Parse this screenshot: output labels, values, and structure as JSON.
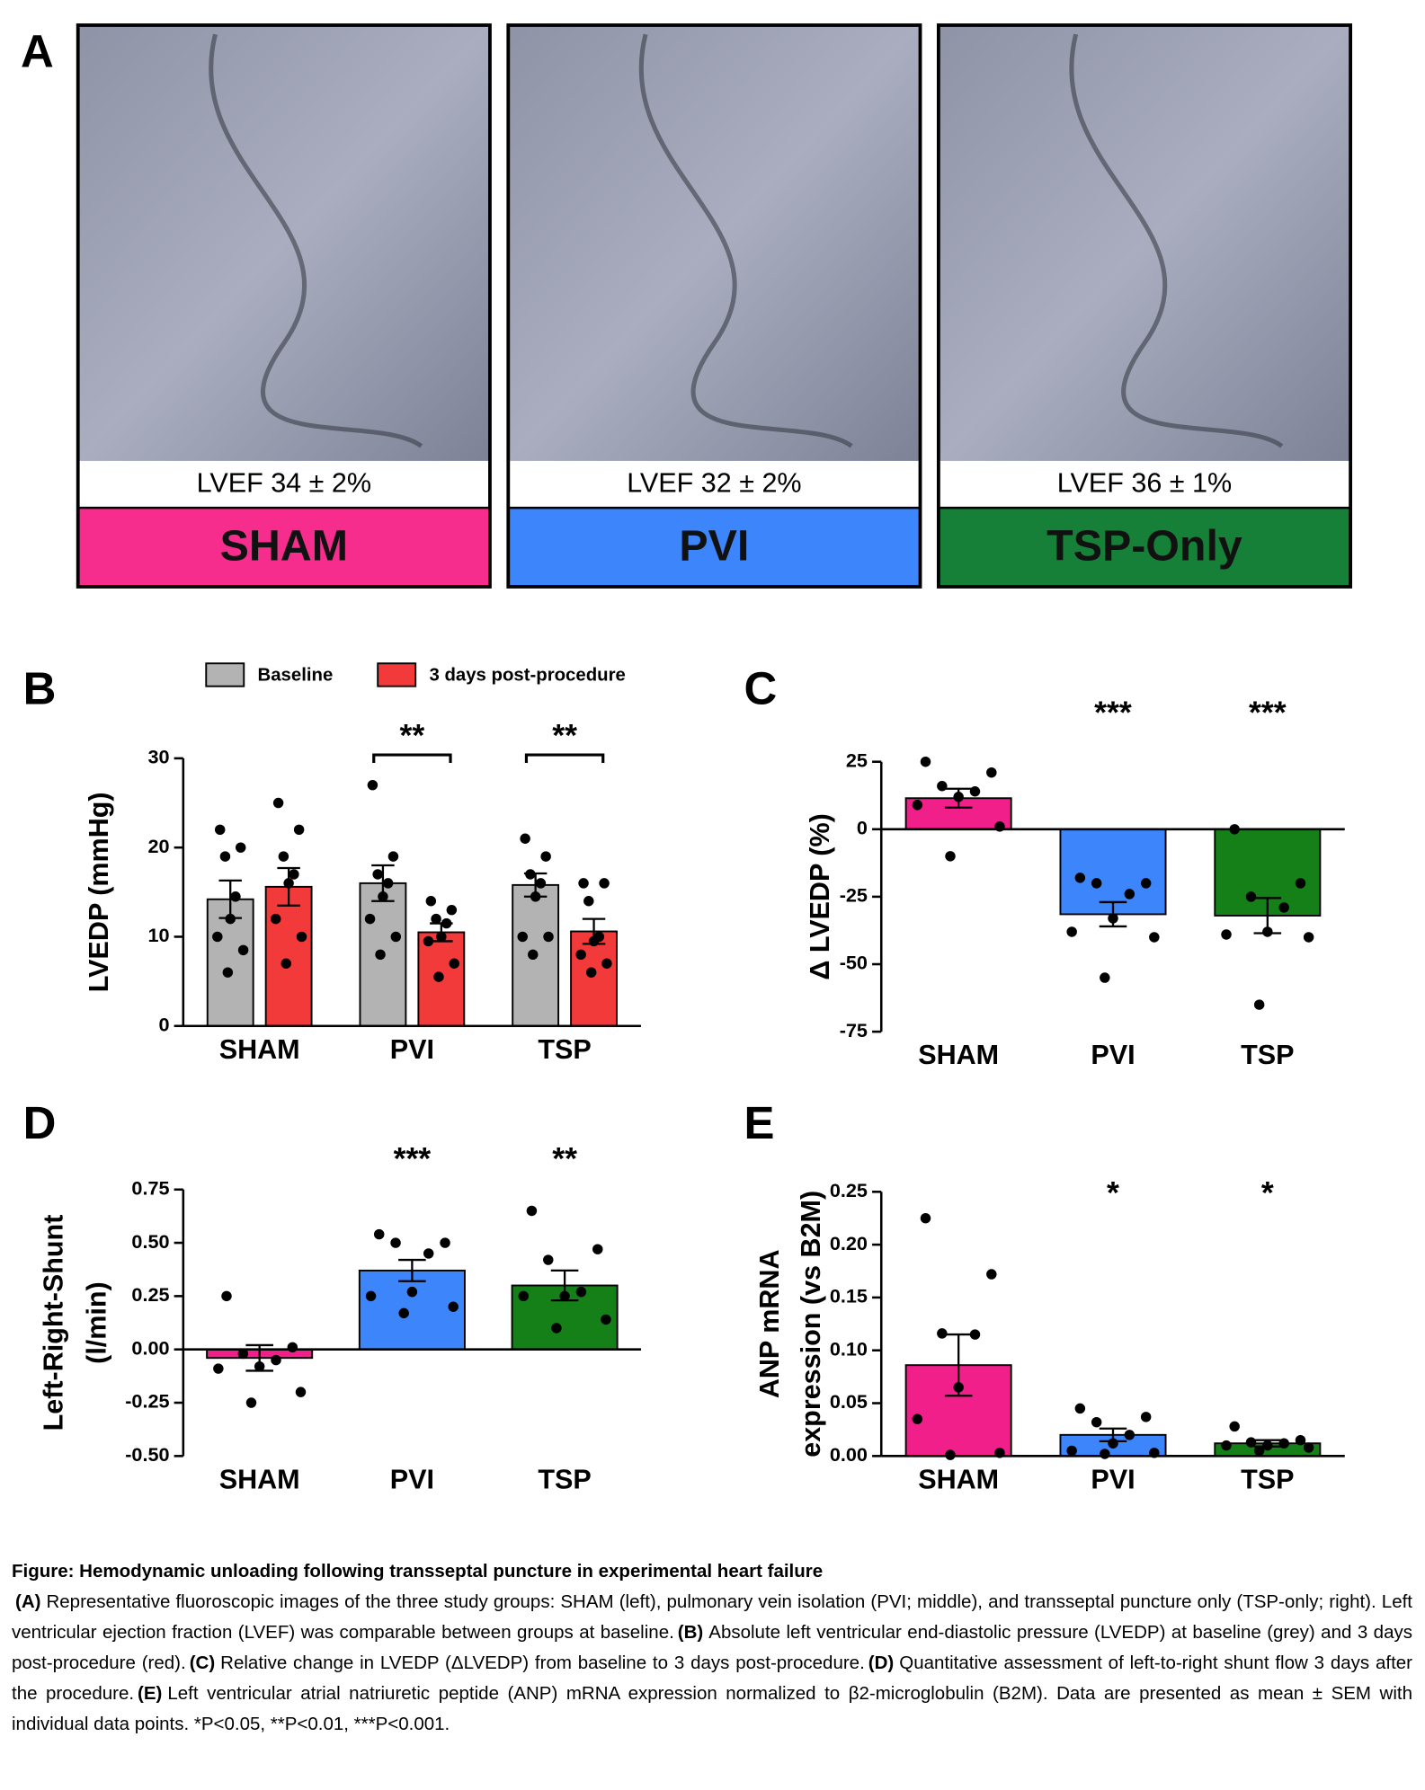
{
  "panel_a": {
    "letter": "A",
    "panels": [
      {
        "lvef": "LVEF 34 ± 2%",
        "label": "SHAM",
        "color": "#f72d8d"
      },
      {
        "lvef": "LVEF 32 ± 2%",
        "label": "PVI",
        "color": "#3d85fb"
      },
      {
        "lvef": "LVEF 36 ± 1%",
        "label": "TSP-Only",
        "color": "#168038"
      }
    ]
  },
  "chart_data": [
    {
      "type": "bar",
      "panel": "B",
      "ylabel": [
        "LVEDP (mmHg)"
      ],
      "categories": [
        "SHAM",
        "PVI",
        "TSP"
      ],
      "ylim": [
        0,
        30
      ],
      "yticks": [
        0,
        10,
        20,
        30
      ],
      "series": [
        {
          "name": "Baseline",
          "color": "#b3b3b3",
          "values": [
            14.2,
            16.0,
            15.8
          ],
          "errors": [
            2.1,
            2.0,
            1.3
          ],
          "points": [
            [
              22,
              20,
              19,
              14.5,
              12,
              10,
              8.5,
              6
            ],
            [
              27,
              19,
              17,
              16,
              14.5,
              12,
              10,
              8
            ],
            [
              21,
              19,
              17,
              16,
              14.5,
              10,
              10,
              8
            ]
          ]
        },
        {
          "name": "3 days post-procedure",
          "color": "#f23a3a",
          "values": [
            15.6,
            10.5,
            10.6
          ],
          "errors": [
            2.1,
            1.0,
            1.4
          ],
          "points": [
            [
              25,
              22,
              19,
              17,
              16,
              12,
              10,
              7
            ],
            [
              14,
              13,
              12,
              11.5,
              10,
              9.5,
              7,
              5.5
            ],
            [
              16,
              16,
              14,
              10,
              9.5,
              8,
              7,
              6
            ]
          ]
        }
      ],
      "annotations": [
        {
          "text": "**",
          "category": 1,
          "bracket": true
        },
        {
          "text": "**",
          "category": 2,
          "bracket": true
        }
      ]
    },
    {
      "type": "bar",
      "panel": "C",
      "ylabel": [
        "Δ LVEDP (%)"
      ],
      "categories": [
        "SHAM",
        "PVI",
        "TSP"
      ],
      "ylim": [
        -75,
        25
      ],
      "yticks": [
        -75,
        -50,
        -25,
        0,
        25
      ],
      "colors": [
        "#f01f89",
        "#3d85fb",
        "#168018"
      ],
      "values": [
        11.5,
        -31.5,
        -32
      ],
      "errors": [
        3.5,
        4.5,
        6.5
      ],
      "points": [
        [
          25,
          21,
          16,
          14,
          12,
          9,
          1,
          -10
        ],
        [
          -18,
          -20,
          -20,
          -24,
          -33,
          -38,
          -40,
          -55
        ],
        [
          0,
          -20,
          -25,
          -29,
          -38,
          -39,
          -40,
          -65
        ]
      ],
      "annotations": [
        {
          "text": "***",
          "category": 1
        },
        {
          "text": "***",
          "category": 2
        }
      ]
    },
    {
      "type": "bar",
      "panel": "D",
      "ylabel": [
        "Left-Right-Shunt",
        "(l/min)"
      ],
      "categories": [
        "SHAM",
        "PVI",
        "TSP"
      ],
      "ylim": [
        -0.5,
        0.75
      ],
      "yticks": [
        {
          "value": -0.5,
          "label": "-0.50"
        },
        {
          "value": -0.25,
          "label": "-0.25"
        },
        {
          "value": 0,
          "label": "0.00"
        },
        {
          "value": 0.25,
          "label": "0.25"
        },
        {
          "value": 0.5,
          "label": "0.50"
        },
        {
          "value": 0.75,
          "label": "0.75"
        }
      ],
      "colors": [
        "#f01f89",
        "#3d85fb",
        "#168018"
      ],
      "values": [
        -0.04,
        0.37,
        0.3
      ],
      "errors": [
        0.06,
        0.05,
        0.07
      ],
      "points": [
        [
          0.25,
          0.01,
          -0.02,
          -0.05,
          -0.08,
          -0.09,
          -0.2,
          -0.25
        ],
        [
          0.54,
          0.5,
          0.5,
          0.45,
          0.27,
          0.25,
          0.2,
          0.17
        ],
        [
          0.65,
          0.47,
          0.42,
          0.27,
          0.25,
          0.25,
          0.14,
          0.1
        ]
      ],
      "annotations": [
        {
          "text": "***",
          "category": 1
        },
        {
          "text": "**",
          "category": 2
        }
      ]
    },
    {
      "type": "bar",
      "panel": "E",
      "ylabel": [
        "ANP mRNA",
        "expression (vs B2M)"
      ],
      "categories": [
        "SHAM",
        "PVI",
        "TSP"
      ],
      "ylim": [
        0,
        0.25
      ],
      "yticks": [
        {
          "value": 0,
          "label": "0.00"
        },
        {
          "value": 0.05,
          "label": "0.05"
        },
        {
          "value": 0.1,
          "label": "0.10"
        },
        {
          "value": 0.15,
          "label": "0.15"
        },
        {
          "value": 0.2,
          "label": "0.20"
        },
        {
          "value": 0.25,
          "label": "0.25"
        }
      ],
      "colors": [
        "#f01f89",
        "#3d85fb",
        "#168018"
      ],
      "values": [
        0.086,
        0.02,
        0.012
      ],
      "errors": [
        0.029,
        0.006,
        0.003
      ],
      "points": [
        [
          0.225,
          0.172,
          0.116,
          0.115,
          0.065,
          0.035,
          0.003,
          0.001
        ],
        [
          0.045,
          0.037,
          0.032,
          0.02,
          0.012,
          0.005,
          0.003,
          0.002
        ],
        [
          0.028,
          0.015,
          0.013,
          0.012,
          0.01,
          0.01,
          0.008,
          0.005
        ]
      ],
      "annotations": [
        {
          "text": "*",
          "category": 1
        },
        {
          "text": "*",
          "category": 2
        }
      ]
    }
  ],
  "caption": {
    "title": "Figure: Hemodynamic unloading following transseptal puncture in experimental heart failure",
    "parts": [
      {
        "label": "(A)",
        "text": "Representative fluoroscopic images of the three study groups: SHAM (left), pulmonary vein isolation (PVI; middle), and transseptal puncture only (TSP-only; right). Left ventricular ejection fraction (LVEF) was comparable between groups at baseline."
      },
      {
        "label": "(B)",
        "text": "Absolute left ventricular end-diastolic pressure (LVEDP) at baseline (grey) and 3 days post-procedure (red)."
      },
      {
        "label": "(C)",
        "text": "Relative change in LVEDP (ΔLVEDP) from baseline to 3 days post-procedure."
      },
      {
        "label": "(D)",
        "text": "Quantitative assessment of left-to-right shunt flow 3 days after the procedure."
      },
      {
        "label": "(E)",
        "text": "Left ventricular atrial natriuretic peptide (ANP) mRNA expression normalized to β2-microglobulin (B2M). Data are presented as mean ± SEM with individual data points. *P<0.05, **P<0.01, ***P<0.001."
      }
    ]
  }
}
